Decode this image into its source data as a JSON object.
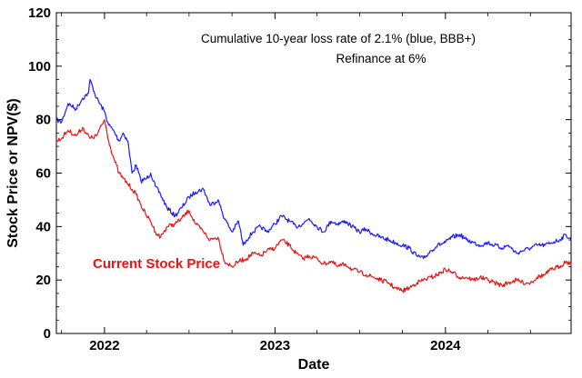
{
  "chart_data": {
    "type": "line",
    "xlabel": "Date",
    "ylabel": "Stock Price or NPV($)",
    "ylim": [
      0,
      120
    ],
    "xlim": [
      "2021-09-20",
      "2024-09-26"
    ],
    "y_ticks": [
      0,
      20,
      40,
      60,
      80,
      100,
      120
    ],
    "x_ticks": [
      {
        "date": "2022-01-01",
        "label": "2022"
      },
      {
        "date": "2023-01-01",
        "label": "2023"
      },
      {
        "date": "2024-01-01",
        "label": "2024"
      }
    ],
    "grid": false,
    "annotations": [
      "Cumulative 10-year loss rate of 2.1% (blue, BBB+)",
      "Refinance at 6%"
    ],
    "series": [
      {
        "label": "",
        "color": "#1a1aff",
        "x": [
          "2021-09-20",
          "2021-10-01",
          "2021-10-15",
          "2021-11-01",
          "2021-11-15",
          "2021-11-28",
          "2021-12-01",
          "2021-12-15",
          "2022-01-01",
          "2022-01-10",
          "2022-01-20",
          "2022-02-01",
          "2022-02-10",
          "2022-02-20",
          "2022-03-01",
          "2022-03-10",
          "2022-03-20",
          "2022-04-01",
          "2022-04-10",
          "2022-04-20",
          "2022-05-01",
          "2022-05-15",
          "2022-06-01",
          "2022-06-15",
          "2022-07-01",
          "2022-07-15",
          "2022-08-01",
          "2022-08-15",
          "2022-09-01",
          "2022-09-15",
          "2022-10-01",
          "2022-10-15",
          "2022-10-25",
          "2022-11-01",
          "2022-11-15",
          "2022-12-01",
          "2022-12-15",
          "2023-01-01",
          "2023-01-15",
          "2023-02-01",
          "2023-02-15",
          "2023-03-01",
          "2023-03-15",
          "2023-04-01",
          "2023-04-15",
          "2023-05-01",
          "2023-05-15",
          "2023-06-01",
          "2023-06-15",
          "2023-07-01",
          "2023-07-15",
          "2023-08-01",
          "2023-08-15",
          "2023-09-01",
          "2023-09-15",
          "2023-10-01",
          "2023-10-15",
          "2023-11-01",
          "2023-11-15",
          "2023-12-01",
          "2023-12-15",
          "2024-01-01",
          "2024-01-15",
          "2024-02-01",
          "2024-02-15",
          "2024-03-01",
          "2024-03-15",
          "2024-04-01",
          "2024-04-15",
          "2024-05-01",
          "2024-05-15",
          "2024-06-01",
          "2024-06-15",
          "2024-07-01",
          "2024-07-15",
          "2024-08-01",
          "2024-08-15",
          "2024-09-01",
          "2024-09-15",
          "2024-09-26"
        ],
        "y": [
          80,
          79,
          86,
          84,
          88,
          90,
          95,
          88,
          83,
          78,
          76,
          72,
          75,
          72,
          60,
          63,
          57,
          58,
          60,
          55,
          52,
          47,
          44,
          47,
          51,
          53,
          54,
          48,
          50,
          43,
          38,
          42,
          33,
          35,
          38,
          40,
          38,
          41,
          44,
          42,
          40,
          41,
          43,
          40,
          38,
          42,
          41,
          42,
          40,
          38,
          39,
          37,
          36,
          35,
          34,
          33,
          32,
          29,
          28,
          31,
          33,
          34,
          36,
          37,
          35,
          34,
          33,
          34,
          33,
          32,
          33,
          30,
          31,
          32,
          33,
          33,
          34,
          35,
          37,
          35
        ]
      },
      {
        "label": "Current Stock Price",
        "color": "#ee1111",
        "x": [
          "2021-09-20",
          "2021-10-01",
          "2021-10-15",
          "2021-11-01",
          "2021-11-15",
          "2021-12-01",
          "2021-12-15",
          "2022-01-01",
          "2022-01-10",
          "2022-01-20",
          "2022-02-01",
          "2022-02-10",
          "2022-02-20",
          "2022-03-01",
          "2022-03-10",
          "2022-03-20",
          "2022-04-01",
          "2022-04-10",
          "2022-04-20",
          "2022-05-01",
          "2022-05-15",
          "2022-06-01",
          "2022-06-15",
          "2022-07-01",
          "2022-07-15",
          "2022-08-01",
          "2022-08-15",
          "2022-09-01",
          "2022-09-15",
          "2022-10-01",
          "2022-10-15",
          "2022-11-01",
          "2022-11-15",
          "2022-12-01",
          "2022-12-15",
          "2023-01-01",
          "2023-01-15",
          "2023-02-01",
          "2023-02-15",
          "2023-03-01",
          "2023-03-15",
          "2023-04-01",
          "2023-04-15",
          "2023-05-01",
          "2023-05-15",
          "2023-06-01",
          "2023-06-15",
          "2023-07-01",
          "2023-07-15",
          "2023-08-01",
          "2023-08-15",
          "2023-09-01",
          "2023-09-15",
          "2023-10-01",
          "2023-10-15",
          "2023-11-01",
          "2023-11-15",
          "2023-12-01",
          "2023-12-15",
          "2024-01-01",
          "2024-01-15",
          "2024-02-01",
          "2024-02-15",
          "2024-03-01",
          "2024-03-15",
          "2024-04-01",
          "2024-04-15",
          "2024-05-01",
          "2024-05-15",
          "2024-06-01",
          "2024-06-15",
          "2024-07-01",
          "2024-07-15",
          "2024-08-01",
          "2024-08-15",
          "2024-09-01",
          "2024-09-15",
          "2024-09-26"
        ],
        "y": [
          72,
          73,
          76,
          74,
          77,
          73,
          74,
          80,
          72,
          66,
          60,
          58,
          56,
          54,
          52,
          48,
          44,
          42,
          38,
          36,
          40,
          41,
          43,
          46,
          41,
          38,
          35,
          36,
          27,
          25,
          27,
          28,
          30,
          29,
          31,
          32,
          35,
          33,
          30,
          28,
          29,
          28,
          26,
          27,
          25,
          26,
          24,
          23,
          22,
          21,
          20,
          19,
          17,
          16,
          17,
          19,
          20,
          21,
          22,
          24,
          23,
          21,
          21,
          20,
          21,
          20,
          19,
          18,
          19,
          20,
          19,
          19,
          21,
          22,
          24,
          25,
          27,
          26
        ]
      }
    ]
  }
}
